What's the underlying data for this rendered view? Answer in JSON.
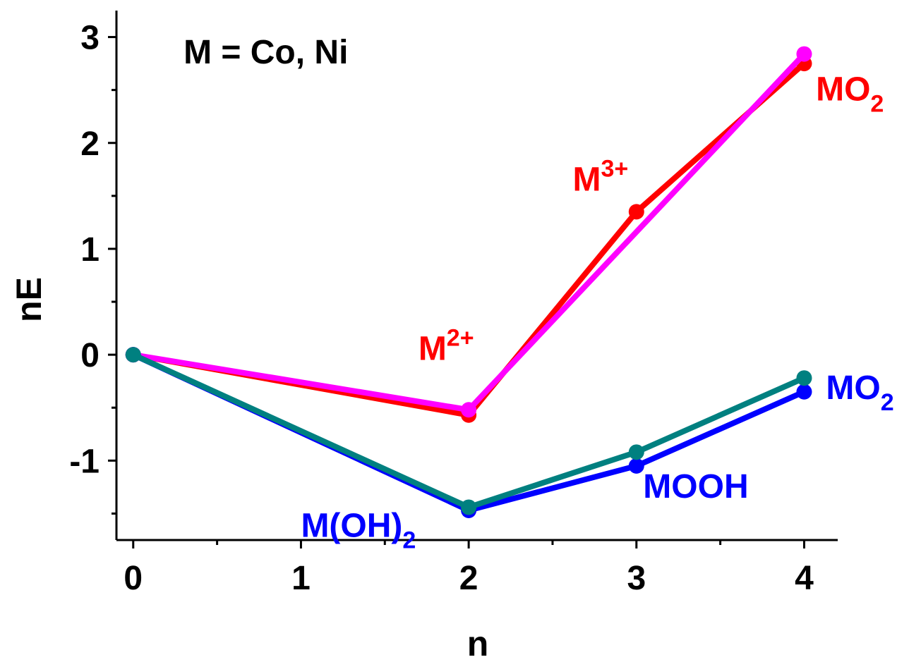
{
  "chart_data": {
    "type": "line",
    "title": "",
    "xlabel": "n",
    "ylabel": "nE",
    "xlim": [
      -0.1,
      4.2
    ],
    "ylim": [
      -1.75,
      3.25
    ],
    "xticks": [
      0,
      1,
      2,
      3,
      4
    ],
    "yticks": [
      -1,
      0,
      1,
      2,
      3
    ],
    "xtick_labels": [
      "0",
      "1",
      "2",
      "3",
      "4"
    ],
    "ytick_labels": [
      "-1",
      "0",
      "1",
      "2",
      "3"
    ],
    "grid": false,
    "legend": "none",
    "series": [
      {
        "color": "#FF0000",
        "x": [
          0,
          2,
          3,
          4
        ],
        "y": [
          0,
          -0.57,
          1.35,
          2.75
        ]
      },
      {
        "color": "#FF00FF",
        "x": [
          0,
          2,
          4
        ],
        "y": [
          0,
          -0.52,
          2.84
        ]
      },
      {
        "color": "#0000FF",
        "x": [
          0,
          2,
          3,
          4
        ],
        "y": [
          0,
          -1.47,
          -1.05,
          -0.35
        ]
      },
      {
        "color": "#008080",
        "x": [
          0,
          2,
          3,
          4
        ],
        "y": [
          0,
          -1.44,
          -0.92,
          -0.22
        ]
      }
    ],
    "annotations": [
      {
        "text": "M = Co, Ni",
        "x": 0.3,
        "y": 2.75,
        "color": "#000000"
      },
      {
        "text": "M",
        "sup": "2+",
        "x": 1.7,
        "y": -0.05,
        "color": "#FF0000"
      },
      {
        "text": "M",
        "sup": "3+",
        "x": 2.62,
        "y": 1.55,
        "color": "#FF0000"
      },
      {
        "text": "MO",
        "sub": "2",
        "x": 4.07,
        "y": 2.4,
        "color": "#FF0000"
      },
      {
        "text": "MO",
        "sub": "2",
        "x": 4.13,
        "y": -0.42,
        "color": "#0000FF"
      },
      {
        "text": "MOOH",
        "x": 3.04,
        "y": -1.35,
        "color": "#0000FF"
      },
      {
        "text": "M(OH)",
        "sub": "2",
        "x": 1.0,
        "y": -1.72,
        "color": "#0000FF"
      }
    ]
  }
}
